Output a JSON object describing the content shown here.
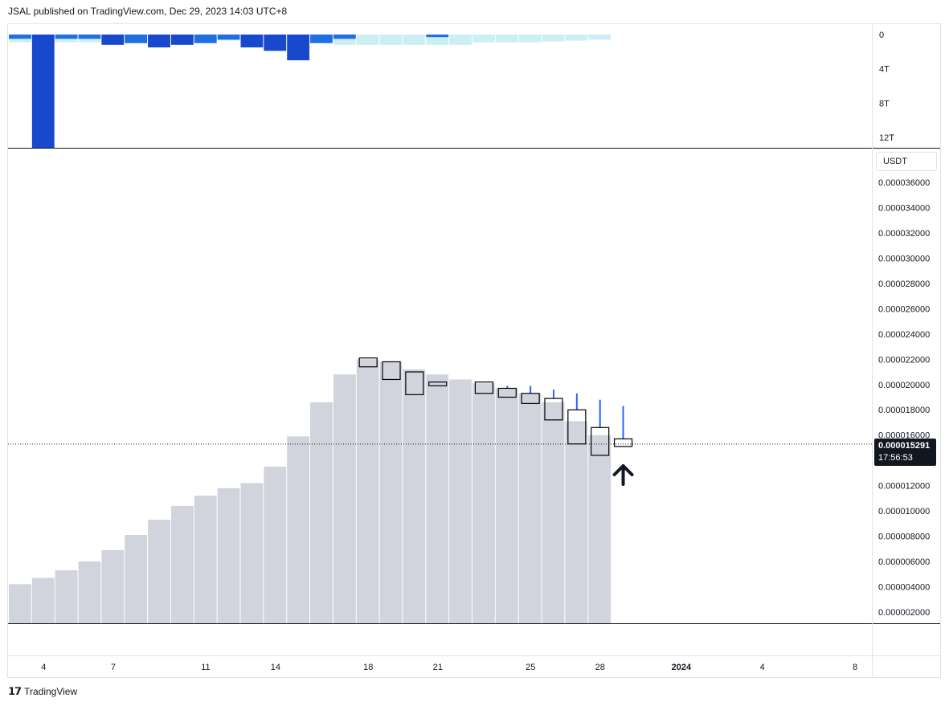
{
  "header": {
    "published": "JSAL published on TradingView.com, Dec 29, 2023 14:03 UTC+8"
  },
  "footer": {
    "logo_icon": "tradingview-logo-icon",
    "brand": "TradingView"
  },
  "colors": {
    "volume_dark": "#1848cc",
    "volume_mid": "#1f6fe0",
    "volume_light": "#cbeff4",
    "area": "#d1d4dc",
    "wick_up": "#2962ff",
    "candle_border": "#000000",
    "crosshair": "#131722"
  },
  "chart_data": [
    {
      "type": "bar",
      "name": "top-volume-panel",
      "y_ticks": [
        "0",
        "4T",
        "8T",
        "12T"
      ],
      "y_tick_values": [
        0,
        4,
        8,
        12
      ],
      "ylim": [
        0,
        13.2
      ],
      "bars": [
        {
          "light": 0.9,
          "dark": 0.5
        },
        {
          "light": 0.9,
          "dark": 13.2
        },
        {
          "light": 0.9,
          "dark": 0.5
        },
        {
          "light": 0.9,
          "dark": 0.5
        },
        {
          "light": 0.7,
          "dark": 1.2
        },
        {
          "light": 0.7,
          "dark": 1.0
        },
        {
          "light": 0.7,
          "dark": 1.5
        },
        {
          "light": 0.7,
          "dark": 1.2
        },
        {
          "light": 0.7,
          "dark": 1.0
        },
        {
          "light": 0.7,
          "dark": 0.6
        },
        {
          "light": 0.7,
          "dark": 1.5
        },
        {
          "light": 0.7,
          "dark": 1.9
        },
        {
          "light": 0.7,
          "dark": 3.0
        },
        {
          "light": 0.7,
          "dark": 1.0
        },
        {
          "light": 1.2,
          "dark": 0.5
        },
        {
          "light": 1.2,
          "dark": 0
        },
        {
          "light": 1.2,
          "dark": 0
        },
        {
          "light": 1.2,
          "dark": 0
        },
        {
          "light": 1.2,
          "dark": 0.3
        },
        {
          "light": 1.2,
          "dark": 0
        },
        {
          "light": 0.9,
          "dark": 0
        },
        {
          "light": 0.9,
          "dark": 0
        },
        {
          "light": 0.9,
          "dark": 0
        },
        {
          "light": 0.8,
          "dark": 0
        },
        {
          "light": 0.7,
          "dark": 0
        },
        {
          "light": 0.6,
          "dark": 0
        }
      ]
    },
    {
      "type": "area",
      "name": "price-panel",
      "unit": "USDT",
      "y_ticks": [
        "0.000002000",
        "0.000004000",
        "0.000006000",
        "0.000008000",
        "0.000010000",
        "0.000012000",
        "0.000014000",
        "0.000016000",
        "0.000018000",
        "0.000020000",
        "0.000022000",
        "0.000024000",
        "0.000026000",
        "0.000028000",
        "0.000030000",
        "0.000032000",
        "0.000034000",
        "0.000036000"
      ],
      "y_tick_values": [
        2,
        4,
        6,
        8,
        10,
        12,
        14,
        16,
        18,
        20,
        22,
        24,
        26,
        28,
        30,
        32,
        34,
        36
      ],
      "ylim": [
        1.1,
        37.5
      ],
      "y_scale_note": "values in millionths of USDT",
      "area_values": [
        4.2,
        4.7,
        5.3,
        6.0,
        6.9,
        8.1,
        9.3,
        10.4,
        11.2,
        11.8,
        12.2,
        13.5,
        15.9,
        18.6,
        20.8,
        22.0,
        21.8,
        21.2,
        20.8,
        20.4,
        20.1,
        19.7,
        19.3,
        18.6,
        17.1,
        16.0
      ],
      "candles": [
        {
          "index": 15,
          "open": 21.4,
          "close": 22.1,
          "high": 22.1,
          "low": 21.4
        },
        {
          "index": 16,
          "open": 21.8,
          "close": 20.4,
          "high": 21.8,
          "low": 20.4
        },
        {
          "index": 17,
          "open": 21.0,
          "close": 19.2,
          "high": 21.0,
          "low": 19.2
        },
        {
          "index": 18,
          "open": 20.2,
          "close": 19.9,
          "high": 20.2,
          "low": 19.9
        },
        {
          "index": 20,
          "open": 20.2,
          "close": 19.3,
          "high": 20.2,
          "low": 19.3
        },
        {
          "index": 21,
          "open": 19.7,
          "close": 19.0,
          "high": 19.9,
          "low": 19.0
        },
        {
          "index": 22,
          "open": 19.3,
          "close": 18.5,
          "high": 19.9,
          "low": 18.5
        },
        {
          "index": 23,
          "open": 18.9,
          "close": 17.2,
          "high": 19.6,
          "low": 17.2
        },
        {
          "index": 24,
          "open": 18.0,
          "close": 15.3,
          "high": 19.3,
          "low": 15.3
        },
        {
          "index": 25,
          "open": 16.6,
          "close": 14.4,
          "high": 18.8,
          "low": 14.4
        },
        {
          "index": 26,
          "open": 15.7,
          "close": 15.1,
          "high": 18.3,
          "low": 15.1
        }
      ],
      "last_price": {
        "label": "0.000015291",
        "value": 15.291,
        "countdown": "17:56:53"
      },
      "annotation": {
        "type": "arrow-up",
        "index": 26
      }
    }
  ],
  "x_axis": {
    "ticks": [
      {
        "label": "4",
        "index": 1.5
      },
      {
        "label": "7",
        "index": 4.5
      },
      {
        "label": "11",
        "index": 8.5
      },
      {
        "label": "14",
        "index": 11.5
      },
      {
        "label": "18",
        "index": 15.5
      },
      {
        "label": "21",
        "index": 18.5
      },
      {
        "label": "25",
        "index": 22.5
      },
      {
        "label": "28",
        "index": 25.5
      },
      {
        "label": "2024",
        "index": 29.0,
        "bold": true
      },
      {
        "label": "4",
        "index": 32.5
      },
      {
        "label": "8",
        "index": 36.5
      }
    ]
  }
}
